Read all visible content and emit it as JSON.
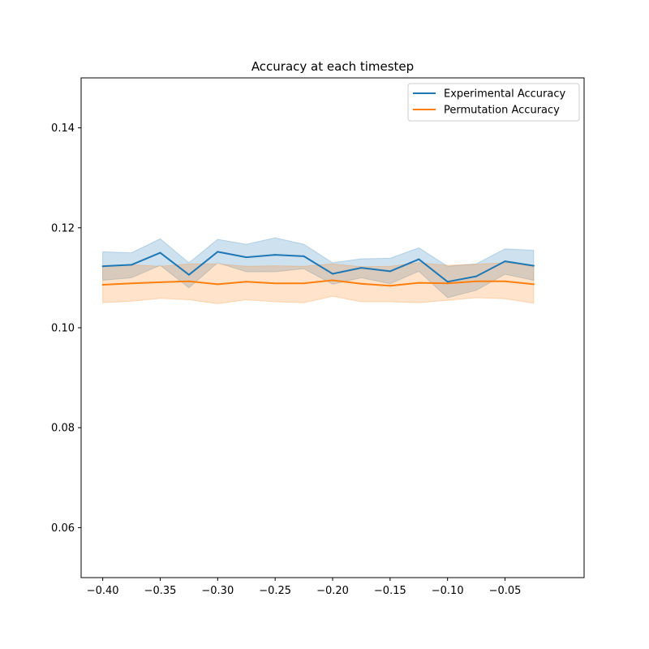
{
  "chart_data": {
    "type": "line",
    "title": "Accuracy at each timestep",
    "xlabel": "",
    "ylabel": "",
    "xlim": [
      -0.4188,
      0.0188
    ],
    "ylim": [
      0.05,
      0.15
    ],
    "xticks": [
      -0.4,
      -0.35,
      -0.3,
      -0.25,
      -0.2,
      -0.15,
      -0.1,
      -0.05
    ],
    "xtick_labels": [
      "−0.40",
      "−0.35",
      "−0.30",
      "−0.25",
      "−0.20",
      "−0.15",
      "−0.10",
      "−0.05"
    ],
    "yticks": [
      0.06,
      0.08,
      0.1,
      0.12,
      0.14
    ],
    "ytick_labels": [
      "0.06",
      "0.08",
      "0.10",
      "0.12",
      "0.14"
    ],
    "grid": false,
    "legend_position": "top-right",
    "x": [
      -0.4,
      -0.375,
      -0.35,
      -0.325,
      -0.3,
      -0.275,
      -0.25,
      -0.225,
      -0.2,
      -0.175,
      -0.15,
      -0.125,
      -0.1,
      -0.075,
      -0.05,
      -0.025
    ],
    "series": [
      {
        "name": "Experimental Accuracy",
        "color": "#1f77b4",
        "values": [
          0.1123,
          0.1126,
          0.115,
          0.1106,
          0.1152,
          0.1141,
          0.1146,
          0.1143,
          0.1108,
          0.112,
          0.1113,
          0.1137,
          0.1092,
          0.1103,
          0.1133,
          0.1124
        ],
        "lower": [
          0.1095,
          0.11,
          0.1125,
          0.108,
          0.113,
          0.1112,
          0.1112,
          0.1118,
          0.1087,
          0.11,
          0.1088,
          0.1113,
          0.106,
          0.1075,
          0.1107,
          0.1095
        ],
        "upper": [
          0.1152,
          0.115,
          0.1178,
          0.113,
          0.1177,
          0.1167,
          0.118,
          0.1167,
          0.113,
          0.1138,
          0.1139,
          0.116,
          0.1123,
          0.1128,
          0.1158,
          0.1155
        ]
      },
      {
        "name": "Permutation Accuracy",
        "color": "#ff7f0e",
        "values": [
          0.1086,
          0.1089,
          0.1091,
          0.1093,
          0.1087,
          0.1092,
          0.1089,
          0.1089,
          0.1095,
          0.1088,
          0.1084,
          0.109,
          0.1089,
          0.1093,
          0.1093,
          0.1087
        ],
        "lower": [
          0.105,
          0.1053,
          0.1059,
          0.1056,
          0.1048,
          0.1056,
          0.1052,
          0.105,
          0.1063,
          0.1052,
          0.1052,
          0.105,
          0.1055,
          0.106,
          0.1058,
          0.1049
        ],
        "upper": [
          0.1122,
          0.1126,
          0.1123,
          0.1128,
          0.1128,
          0.1123,
          0.1124,
          0.1123,
          0.1128,
          0.1122,
          0.1123,
          0.113,
          0.1125,
          0.1127,
          0.113,
          0.1123
        ]
      }
    ]
  }
}
